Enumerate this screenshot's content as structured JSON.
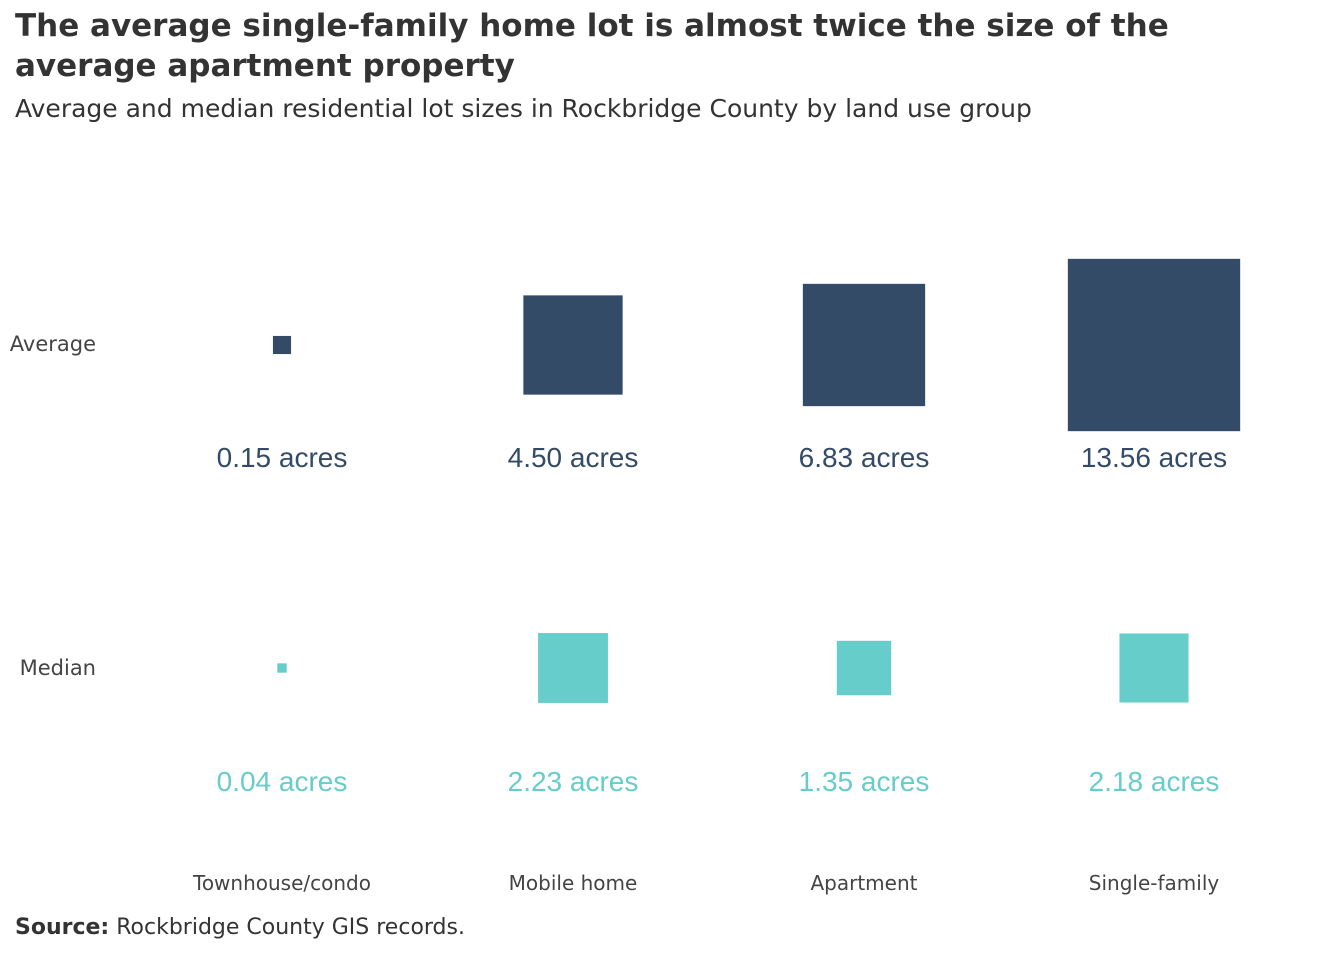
{
  "title": "The average single-family home lot is almost twice the size of the average apartment property",
  "subtitle": "Average and median residential lot sizes in Rockbridge County by land use group",
  "source": {
    "label": "Source:",
    "text": "Rockbridge County GIS records."
  },
  "colors": {
    "average": "#344b68",
    "median": "#66cdca",
    "text": "#333333"
  },
  "chart_data": {
    "type": "proportional-square",
    "categories": [
      "Townhouse/condo",
      "Mobile home",
      "Apartment",
      "Single-family"
    ],
    "unit": "acres",
    "series": [
      {
        "name": "Average",
        "values": [
          0.15,
          4.5,
          6.83,
          13.56
        ],
        "labels": [
          "0.15 acres",
          "4.50 acres",
          "6.83 acres",
          "13.56 acres"
        ]
      },
      {
        "name": "Median",
        "values": [
          0.04,
          2.23,
          1.35,
          2.18
        ],
        "labels": [
          "0.04 acres",
          "2.23 acres",
          "1.35 acres",
          "2.18 acres"
        ]
      }
    ]
  }
}
